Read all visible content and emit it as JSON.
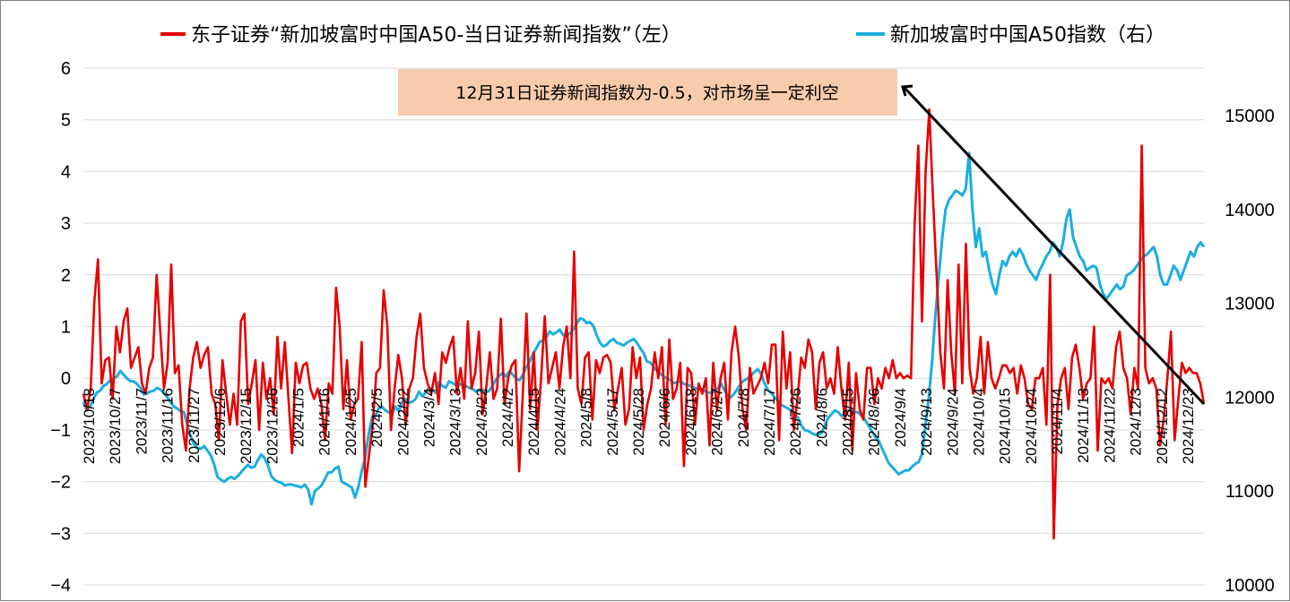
{
  "chart_data": {
    "type": "line",
    "legend": [
      {
        "label": "东子证券“新加坡富时中国A50-当日证券新闻指数”（左）",
        "color": "#e60000",
        "axis": "left"
      },
      {
        "label": "新加坡富时中国A50指数（右）",
        "color": "#1aaee0",
        "axis": "right"
      }
    ],
    "legend_position": "top",
    "annotation": "12月31日证券新闻指数为-0.5，对市场呈一定利空",
    "annotation_bg": "#f7cbac",
    "grid": true,
    "left_axis": {
      "min": -4,
      "max": 6,
      "ticks": [
        "−4",
        "−3",
        "−2",
        "−1",
        "0",
        "1",
        "2",
        "3",
        "4",
        "5",
        "6"
      ]
    },
    "right_axis": {
      "min": 10000,
      "max": 15500,
      "ticks": [
        "10000",
        "11000",
        "12000",
        "13000",
        "14000",
        "15000"
      ]
    },
    "x_ticks": [
      "2023/10/18",
      "2023/10/27",
      "2023/11/7",
      "2023/11/16",
      "2023/11/27",
      "2023/12/6",
      "2023/12/15",
      "2023/12/26",
      "2024/1/5",
      "2024/1/16",
      "2024/1/25",
      "2024/2/5",
      "2024/2/22",
      "2024/3/4",
      "2024/3/13",
      "2024/3/22",
      "2024/4/2",
      "2024/4/15",
      "2024/4/24",
      "2024/5/8",
      "2024/5/17",
      "2024/5/28",
      "2024/6/6",
      "2024/6/18",
      "2024/6/27",
      "2024/7/8",
      "2024/7/17",
      "2024/7/26",
      "2024/8/6",
      "2024/8/15",
      "2024/8/26",
      "2024/9/4",
      "2024/9/13",
      "2024/9/24",
      "2024/10/4",
      "2024/10/15",
      "2024/10/24",
      "2024/11/4",
      "2024/11/13",
      "2024/11/22",
      "2024/12/3",
      "2024/12/12",
      "2024/12/23"
    ],
    "series": [
      {
        "name": "东子证券“新加坡富时中国A50-当日证券新闻指数”（左）",
        "axis": "left",
        "values": [
          -0.3,
          -0.6,
          -0.2,
          1.5,
          2.3,
          -0.1,
          0.35,
          0.4,
          -0.4,
          1.0,
          0.5,
          1.1,
          1.35,
          0.2,
          0.4,
          0.6,
          -0.1,
          -0.3,
          0.2,
          0.4,
          2.0,
          0.9,
          -0.2,
          0.3,
          2.2,
          0.1,
          0.25,
          -0.9,
          -1.4,
          -0.2,
          0.4,
          0.7,
          0.2,
          0.45,
          0.6,
          -0.3,
          -0.5,
          -1.2,
          0.35,
          -0.3,
          -0.9,
          -0.3,
          -0.9,
          1.1,
          1.25,
          -0.5,
          -0.1,
          0.35,
          -1.0,
          0.3,
          -0.4,
          0.0,
          -0.7,
          0.8,
          -0.2,
          0.7,
          -0.4,
          -1.45,
          0.3,
          -0.1,
          0.25,
          0.3,
          -0.2,
          -0.4,
          -0.2,
          -0.5,
          -1.2,
          -0.1,
          -0.3,
          1.75,
          1.0,
          -0.6,
          0.35,
          -0.8,
          -0.5,
          -0.4,
          0.7,
          -2.1,
          -1.5,
          -0.9,
          0.1,
          0.2,
          1.7,
          1.0,
          -1.0,
          -0.2,
          0.45,
          0.0,
          -0.9,
          -0.2,
          0.0,
          0.8,
          1.25,
          0.2,
          -0.1,
          -0.3,
          0.1,
          -0.5,
          0.5,
          0.3,
          0.6,
          0.8,
          -0.3,
          0.2,
          -0.4,
          1.1,
          -0.2,
          0.1,
          0.9,
          -0.7,
          -0.2,
          0.5,
          -0.4,
          -0.2,
          1.15,
          -0.5,
          0.0,
          0.25,
          0.35,
          -1.8,
          -0.3,
          1.25,
          -0.6,
          0.5,
          -1.0,
          0.0,
          1.2,
          -0.1,
          0.2,
          0.5,
          -0.2,
          0.6,
          1.0,
          0.0,
          2.45,
          -0.2,
          -0.5,
          0.4,
          0.5,
          -0.8,
          0.35,
          0.1,
          0.4,
          0.45,
          0.3,
          -0.6,
          -0.2,
          0.2,
          -0.9,
          -0.6,
          0.6,
          0.0,
          0.4,
          -1.0,
          -0.5,
          -0.2,
          0.5,
          0.0,
          0.6,
          -0.9,
          0.75,
          -0.4,
          -0.2,
          0.3,
          -1.7,
          0.2,
          0.1,
          -0.9,
          -0.1,
          -0.3,
          0.0,
          -1.3,
          0.3,
          -0.6,
          0.0,
          0.3,
          -0.8,
          0.5,
          1.0,
          0.4,
          -0.6,
          -1.0,
          0.2,
          -0.3,
          -0.15,
          0.0,
          0.3,
          -0.1,
          0.65,
          0.65,
          -1.2,
          0.9,
          -0.2,
          0.5,
          -1.0,
          -0.4,
          0.4,
          0.2,
          0.75,
          0.5,
          -0.6,
          0.3,
          0.5,
          -0.2,
          0.0,
          -0.3,
          0.6,
          -0.2,
          -0.8,
          0.3,
          -1.4,
          0.1,
          -0.6,
          -0.8,
          0.2,
          0.2,
          -0.5,
          0.0,
          -0.2,
          0.2,
          0.0,
          0.35,
          0.0,
          0.1,
          0.0,
          0.05,
          0.0,
          3.0,
          4.5,
          1.1,
          4.0,
          5.2,
          3.5,
          2.0,
          0.5,
          -0.2,
          1.9,
          0.5,
          -0.3,
          2.2,
          -0.1,
          2.6,
          0.2,
          -0.3,
          0.0,
          0.8,
          -0.3,
          0.7,
          0.0,
          -0.2,
          0.0,
          0.25,
          0.25,
          0.1,
          0.2,
          -0.3,
          0.25,
          0.0,
          -0.5,
          -0.6,
          0.0,
          0.0,
          0.2,
          -0.9,
          2.0,
          -3.1,
          -0.5,
          0.0,
          0.2,
          -0.6,
          0.4,
          0.65,
          0.2,
          -0.4,
          -0.1,
          0.0,
          1.0,
          -1.4,
          0.0,
          -0.1,
          0.0,
          -0.2,
          0.6,
          0.9,
          0.2,
          0.0,
          -0.7,
          0.2,
          -0.2,
          4.5,
          0.2,
          -0.1,
          0.0,
          -0.2,
          -1.3,
          -0.8,
          0.0,
          0.9,
          -1.2,
          -0.4,
          0.3,
          0.1,
          0.2,
          0.1,
          0.1,
          -0.1,
          -0.5
        ]
      },
      {
        "name": "新加坡富时中国A50指数（右）",
        "axis": "right",
        "values": [
          11950,
          11860,
          11900,
          11980,
          12050,
          12070,
          12120,
          12140,
          12180,
          12200,
          12220,
          12280,
          12240,
          12200,
          12170,
          12170,
          12140,
          12100,
          12030,
          12040,
          12060,
          12070,
          12100,
          12080,
          12050,
          12000,
          11950,
          11900,
          11880,
          11850,
          11840,
          11700,
          11580,
          11500,
          11460,
          11450,
          11480,
          11430,
          11380,
          11280,
          11150,
          11120,
          11100,
          11130,
          11150,
          11130,
          11160,
          11200,
          11240,
          11280,
          11250,
          11260,
          11330,
          11390,
          11350,
          11280,
          11160,
          11120,
          11100,
          11090,
          11060,
          11070,
          11070,
          11060,
          11050,
          11040,
          11070,
          11020,
          10860,
          11000,
          11030,
          11060,
          11130,
          11200,
          11200,
          11240,
          11260,
          11100,
          11080,
          11060,
          11040,
          10930,
          11050,
          11220,
          11350,
          11600,
          11780,
          11800,
          11880,
          11900,
          11860,
          11840,
          11820,
          11900,
          11850,
          11950,
          11980,
          11940,
          11950,
          11980,
          12060,
          12010,
          12050,
          12100,
          12080,
          12050,
          12160,
          12120,
          12100,
          12170,
          12150,
          12130,
          12140,
          12130,
          12120,
          12100,
          12090,
          12060,
          12070,
          12080,
          12050,
          12070,
          12130,
          12190,
          12230,
          12260,
          12220,
          12280,
          12240,
          12200,
          12180,
          12240,
          12320,
          12380,
          12460,
          12520,
          12590,
          12600,
          12640,
          12700,
          12670,
          12690,
          12720,
          12660,
          12650,
          12680,
          12720,
          12780,
          12840,
          12830,
          12790,
          12800,
          12760,
          12660,
          12580,
          12540,
          12560,
          12600,
          12620,
          12580,
          12570,
          12550,
          12580,
          12600,
          12620,
          12580,
          12520,
          12470,
          12380,
          12370,
          12320,
          12280,
          12250,
          12220,
          12200,
          12180,
          12150,
          12160,
          12170,
          12140,
          12130,
          12120,
          12100,
          12090,
          12090,
          12070,
          12050,
          12050,
          12060,
          12090,
          12150,
          12080,
          12020,
          12000,
          12040,
          12090,
          12150,
          12180,
          12200,
          12230,
          12270,
          12300,
          12250,
          12150,
          12080,
          12050,
          12000,
          11960,
          11920,
          11900,
          11880,
          11860,
          11820,
          11780,
          11700,
          11650,
          11640,
          11620,
          11600,
          11600,
          11620,
          11700,
          11780,
          11820,
          11860,
          11840,
          11800,
          11820,
          11860,
          11880,
          11840,
          11840,
          11800,
          11760,
          11700,
          11640,
          11580,
          11540,
          11460,
          11380,
          11300,
          11260,
          11220,
          11180,
          11200,
          11220,
          11220,
          11260,
          11290,
          11310,
          11400,
          11700,
          12000,
          12400,
          12900,
          13300,
          13700,
          14000,
          14100,
          14150,
          14200,
          14180,
          14150,
          14220,
          14600,
          14000,
          13600,
          13800,
          13500,
          13550,
          13350,
          13200,
          13100,
          13300,
          13450,
          13400,
          13500,
          13550,
          13500,
          13580,
          13520,
          13420,
          13350,
          13300,
          13250,
          13350,
          13420,
          13500,
          13550,
          13650,
          13600,
          13500,
          13650,
          13900,
          14000,
          13700,
          13600,
          13500,
          13450,
          13350,
          13380,
          13400,
          13380,
          13200,
          13100,
          13050,
          13100,
          13150,
          13200,
          13150,
          13180,
          13300,
          13320,
          13350,
          13400,
          13450,
          13500,
          13520,
          13560,
          13600,
          13500,
          13300,
          13200,
          13200,
          13300,
          13400,
          13350,
          13250,
          13350,
          13450,
          13550,
          13500,
          13600,
          13650,
          13600
        ]
      }
    ]
  }
}
